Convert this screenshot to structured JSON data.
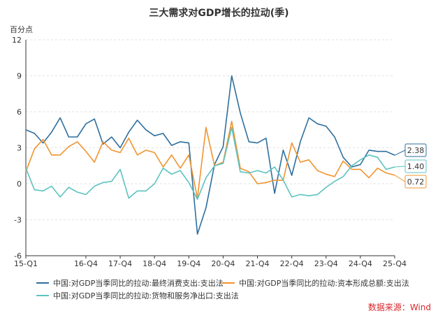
{
  "chart_data": {
    "type": "line",
    "title": "三大需求对GDP增长的拉动(季)",
    "ylabel": "百分点",
    "ylim": [
      -6,
      12
    ],
    "yticks": [
      -6,
      -3,
      0,
      3,
      6,
      9,
      12
    ],
    "xtick_labels": [
      "15-Q1",
      "16-Q4",
      "17-Q4",
      "18-Q4",
      "19-Q4",
      "20-Q4",
      "21-Q4",
      "22-Q4",
      "23-Q4",
      "24-Q4",
      "25-Q4"
    ],
    "x": [
      "15-Q1",
      "15-Q2",
      "15-Q3",
      "15-Q4",
      "16-Q1",
      "16-Q2",
      "16-Q3",
      "16-Q4",
      "17-Q1",
      "17-Q2",
      "17-Q3",
      "17-Q4",
      "18-Q1",
      "18-Q2",
      "18-Q3",
      "18-Q4",
      "19-Q1",
      "19-Q2",
      "19-Q3",
      "19-Q4",
      "20-Q1",
      "20-Q2",
      "20-Q3",
      "20-Q4",
      "21-Q1",
      "21-Q2",
      "21-Q3",
      "21-Q4",
      "22-Q1",
      "22-Q2",
      "22-Q3",
      "22-Q4",
      "23-Q1",
      "23-Q2",
      "23-Q3",
      "23-Q4",
      "24-Q1",
      "24-Q2",
      "24-Q3",
      "24-Q4",
      "25-Q1",
      "25-Q2",
      "25-Q3",
      "25-Q4"
    ],
    "series": [
      {
        "name": "中国:对GDP当季同比的拉动:最终消费支出:支出法",
        "color": "#2e6f9e",
        "values": [
          4.5,
          4.2,
          3.4,
          4.3,
          5.5,
          3.9,
          3.9,
          5.0,
          5.4,
          3.3,
          3.9,
          3.0,
          4.3,
          5.3,
          4.5,
          4.0,
          4.2,
          3.2,
          3.5,
          3.4,
          -4.2,
          -2.0,
          1.6,
          3.1,
          9.0,
          5.9,
          3.5,
          3.4,
          3.8,
          -0.8,
          2.8,
          0.7,
          3.5,
          5.5,
          5.0,
          4.8,
          3.9,
          2.2,
          1.4,
          1.6,
          2.8,
          2.7,
          2.7,
          2.38
        ]
      },
      {
        "name": "中国:对GDP当季同比的拉动:资本形成总额:支出法",
        "color": "#f0942e",
        "values": [
          1.0,
          2.9,
          3.7,
          2.4,
          2.4,
          3.1,
          3.5,
          2.7,
          1.8,
          3.5,
          2.8,
          2.6,
          3.8,
          2.4,
          2.8,
          2.6,
          1.4,
          2.4,
          1.3,
          2.4,
          -1.2,
          4.7,
          1.5,
          1.8,
          5.2,
          1.3,
          1.0,
          0.0,
          0.1,
          0.3,
          0.3,
          3.4,
          1.8,
          2.0,
          1.1,
          0.8,
          0.6,
          1.9,
          1.2,
          1.2,
          0.5,
          1.3,
          0.9,
          0.72
        ]
      },
      {
        "name": "中国:对GDP当季同比的拉动:货物和服务净出口:支出法",
        "color": "#5cc3c1",
        "values": [
          1.3,
          -0.5,
          -0.6,
          -0.2,
          -1.1,
          -0.3,
          -0.7,
          -0.9,
          -0.2,
          0.1,
          0.2,
          1.2,
          -1.2,
          -0.6,
          -0.6,
          0.0,
          1.3,
          0.8,
          1.1,
          0.1,
          -1.3,
          0.5,
          1.5,
          1.7,
          4.7,
          1.0,
          0.9,
          1.1,
          0.9,
          1.4,
          0.3,
          -1.1,
          -0.9,
          -1.0,
          -0.9,
          -0.3,
          0.2,
          0.6,
          1.5,
          2.0,
          2.4,
          2.2,
          1.2,
          1.4
        ]
      }
    ],
    "end_labels": [
      "2.38",
      "1.40",
      "0.72"
    ],
    "source": "数据来源：Wind"
  }
}
